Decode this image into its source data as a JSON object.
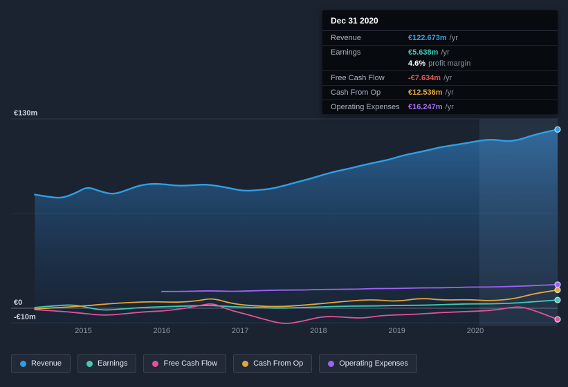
{
  "tooltip": {
    "date": "Dec 31 2020",
    "rows": [
      {
        "label": "Revenue",
        "value": "€122.673m",
        "suffix": "/yr",
        "color": "#36a2e9"
      },
      {
        "label": "Earnings",
        "value": "€5.638m",
        "suffix": "/yr",
        "color": "#41c9b4"
      },
      {
        "label": "",
        "value": "4.6%",
        "suffix": "profit margin",
        "color": "#ffffff"
      },
      {
        "label": "Free Cash Flow",
        "value": "-€7.634m",
        "suffix": "/yr",
        "color": "#e25757"
      },
      {
        "label": "Cash From Op",
        "value": "€12.536m",
        "suffix": "/yr",
        "color": "#e2a63d"
      },
      {
        "label": "Operating Expenses",
        "value": "€16.247m",
        "suffix": "/yr",
        "color": "#a56ef5"
      }
    ]
  },
  "legend": {
    "items": [
      {
        "label": "Revenue",
        "color": "#2e9fe6"
      },
      {
        "label": "Earnings",
        "color": "#45c8b5"
      },
      {
        "label": "Free Cash Flow",
        "color": "#e0539a"
      },
      {
        "label": "Cash From Op",
        "color": "#e2a63d"
      },
      {
        "label": "Operating Expenses",
        "color": "#9d63f3"
      }
    ]
  },
  "chart_data": {
    "type": "line",
    "title": "Company financials over time (€m per year)",
    "units": "€m",
    "x_range": [
      2014.36,
      2021.05
    ],
    "y_top": 130,
    "y_bottom": -15,
    "x_ticks": [
      {
        "x": 2015,
        "label": "2015"
      },
      {
        "x": 2016,
        "label": "2016"
      },
      {
        "x": 2017,
        "label": "2017"
      },
      {
        "x": 2018,
        "label": "2018"
      },
      {
        "x": 2019,
        "label": "2019"
      },
      {
        "x": 2020,
        "label": "2020"
      }
    ],
    "y_ticks": [
      {
        "v": 130,
        "label": "€130m"
      },
      {
        "v": 0,
        "label": "€0"
      },
      {
        "v": -10,
        "label": "-€10m"
      }
    ],
    "gridlines": [
      130,
      65,
      0,
      -10
    ],
    "highlight_from": 2020.05,
    "legend_position": "bottom",
    "series": [
      {
        "name": "Revenue",
        "color": "#2e9fe6",
        "width": 2.4,
        "area": true,
        "points": [
          [
            2014.38,
            78
          ],
          [
            2014.55,
            76.5
          ],
          [
            2014.72,
            75.5
          ],
          [
            2014.9,
            79
          ],
          [
            2015.05,
            83.5
          ],
          [
            2015.2,
            80.5
          ],
          [
            2015.38,
            78
          ],
          [
            2015.55,
            81
          ],
          [
            2015.72,
            84.5
          ],
          [
            2015.9,
            85.5
          ],
          [
            2016.05,
            85
          ],
          [
            2016.22,
            84
          ],
          [
            2016.4,
            84.5
          ],
          [
            2016.55,
            85
          ],
          [
            2016.72,
            84
          ],
          [
            2016.9,
            82
          ],
          [
            2017.05,
            80.5
          ],
          [
            2017.22,
            81
          ],
          [
            2017.4,
            82
          ],
          [
            2017.55,
            84
          ],
          [
            2017.72,
            86.5
          ],
          [
            2017.9,
            89
          ],
          [
            2018.05,
            91.5
          ],
          [
            2018.22,
            94
          ],
          [
            2018.4,
            96
          ],
          [
            2018.55,
            98
          ],
          [
            2018.72,
            100
          ],
          [
            2018.9,
            102
          ],
          [
            2019.05,
            104.5
          ],
          [
            2019.22,
            106.5
          ],
          [
            2019.4,
            108.5
          ],
          [
            2019.55,
            110.5
          ],
          [
            2019.72,
            112
          ],
          [
            2019.9,
            113.5
          ],
          [
            2020.05,
            115
          ],
          [
            2020.22,
            116
          ],
          [
            2020.4,
            114.5
          ],
          [
            2020.55,
            115.5
          ],
          [
            2020.72,
            118.5
          ],
          [
            2020.9,
            121
          ],
          [
            2021.05,
            122.673
          ]
        ]
      },
      {
        "name": "Earnings",
        "color": "#45c8b5",
        "width": 1.8,
        "area": false,
        "points": [
          [
            2014.38,
            0.5
          ],
          [
            2014.6,
            1.5
          ],
          [
            2014.85,
            2.5
          ],
          [
            2015.05,
            0.5
          ],
          [
            2015.25,
            -1.5
          ],
          [
            2015.5,
            -0.5
          ],
          [
            2015.75,
            0.5
          ],
          [
            2016.0,
            1
          ],
          [
            2016.3,
            1.5
          ],
          [
            2016.6,
            2
          ],
          [
            2016.9,
            1
          ],
          [
            2017.2,
            0.5
          ],
          [
            2017.5,
            0
          ],
          [
            2017.8,
            0.5
          ],
          [
            2018.1,
            1
          ],
          [
            2018.4,
            1.5
          ],
          [
            2018.7,
            1.5
          ],
          [
            2019.0,
            2
          ],
          [
            2019.3,
            2
          ],
          [
            2019.6,
            2.5
          ],
          [
            2019.9,
            3
          ],
          [
            2020.2,
            3
          ],
          [
            2020.5,
            3.5
          ],
          [
            2020.75,
            4.5
          ],
          [
            2021.05,
            5.638
          ]
        ]
      },
      {
        "name": "Free Cash Flow",
        "color": "#e0539a",
        "width": 1.8,
        "area": false,
        "points": [
          [
            2014.38,
            -1
          ],
          [
            2014.7,
            -2
          ],
          [
            2015.0,
            -3.5
          ],
          [
            2015.25,
            -5
          ],
          [
            2015.5,
            -4
          ],
          [
            2015.75,
            -2.5
          ],
          [
            2016.0,
            -2
          ],
          [
            2016.25,
            -0.5
          ],
          [
            2016.5,
            2
          ],
          [
            2016.65,
            3.5
          ],
          [
            2016.85,
            -1
          ],
          [
            2017.1,
            -4.5
          ],
          [
            2017.3,
            -7.5
          ],
          [
            2017.55,
            -11
          ],
          [
            2017.8,
            -9
          ],
          [
            2018.05,
            -5.5
          ],
          [
            2018.3,
            -6
          ],
          [
            2018.55,
            -7
          ],
          [
            2018.8,
            -5
          ],
          [
            2019.05,
            -4.5
          ],
          [
            2019.3,
            -4
          ],
          [
            2019.55,
            -3
          ],
          [
            2019.8,
            -2.5
          ],
          [
            2020.05,
            -2
          ],
          [
            2020.3,
            -1
          ],
          [
            2020.55,
            1.5
          ],
          [
            2020.75,
            -1.5
          ],
          [
            2021.05,
            -7.634
          ]
        ]
      },
      {
        "name": "Cash From Op",
        "color": "#e2a63d",
        "width": 1.8,
        "area": false,
        "points": [
          [
            2014.38,
            -0.5
          ],
          [
            2014.7,
            0.5
          ],
          [
            2015.0,
            1.5
          ],
          [
            2015.3,
            3
          ],
          [
            2015.6,
            4
          ],
          [
            2015.9,
            4.5
          ],
          [
            2016.2,
            4
          ],
          [
            2016.45,
            5
          ],
          [
            2016.65,
            7
          ],
          [
            2016.9,
            3
          ],
          [
            2017.2,
            1.5
          ],
          [
            2017.5,
            1
          ],
          [
            2017.8,
            2
          ],
          [
            2018.1,
            3.5
          ],
          [
            2018.4,
            5
          ],
          [
            2018.7,
            6
          ],
          [
            2019.0,
            4.5
          ],
          [
            2019.3,
            7
          ],
          [
            2019.6,
            5.5
          ],
          [
            2019.9,
            6
          ],
          [
            2020.2,
            5
          ],
          [
            2020.5,
            6.5
          ],
          [
            2020.75,
            10
          ],
          [
            2021.05,
            12.536
          ]
        ]
      },
      {
        "name": "Operating Expenses",
        "color": "#9d63f3",
        "width": 1.8,
        "area": false,
        "points": [
          [
            2016.0,
            11.5
          ],
          [
            2016.3,
            11.5
          ],
          [
            2016.6,
            12
          ],
          [
            2016.9,
            11.5
          ],
          [
            2017.2,
            12
          ],
          [
            2017.5,
            12.5
          ],
          [
            2017.8,
            12.5
          ],
          [
            2018.1,
            13
          ],
          [
            2018.4,
            13
          ],
          [
            2018.7,
            13.5
          ],
          [
            2019.0,
            13.5
          ],
          [
            2019.3,
            14
          ],
          [
            2019.6,
            14
          ],
          [
            2019.9,
            14.5
          ],
          [
            2020.2,
            14.5
          ],
          [
            2020.5,
            15
          ],
          [
            2020.75,
            15.5
          ],
          [
            2021.05,
            16.247
          ]
        ]
      }
    ]
  }
}
